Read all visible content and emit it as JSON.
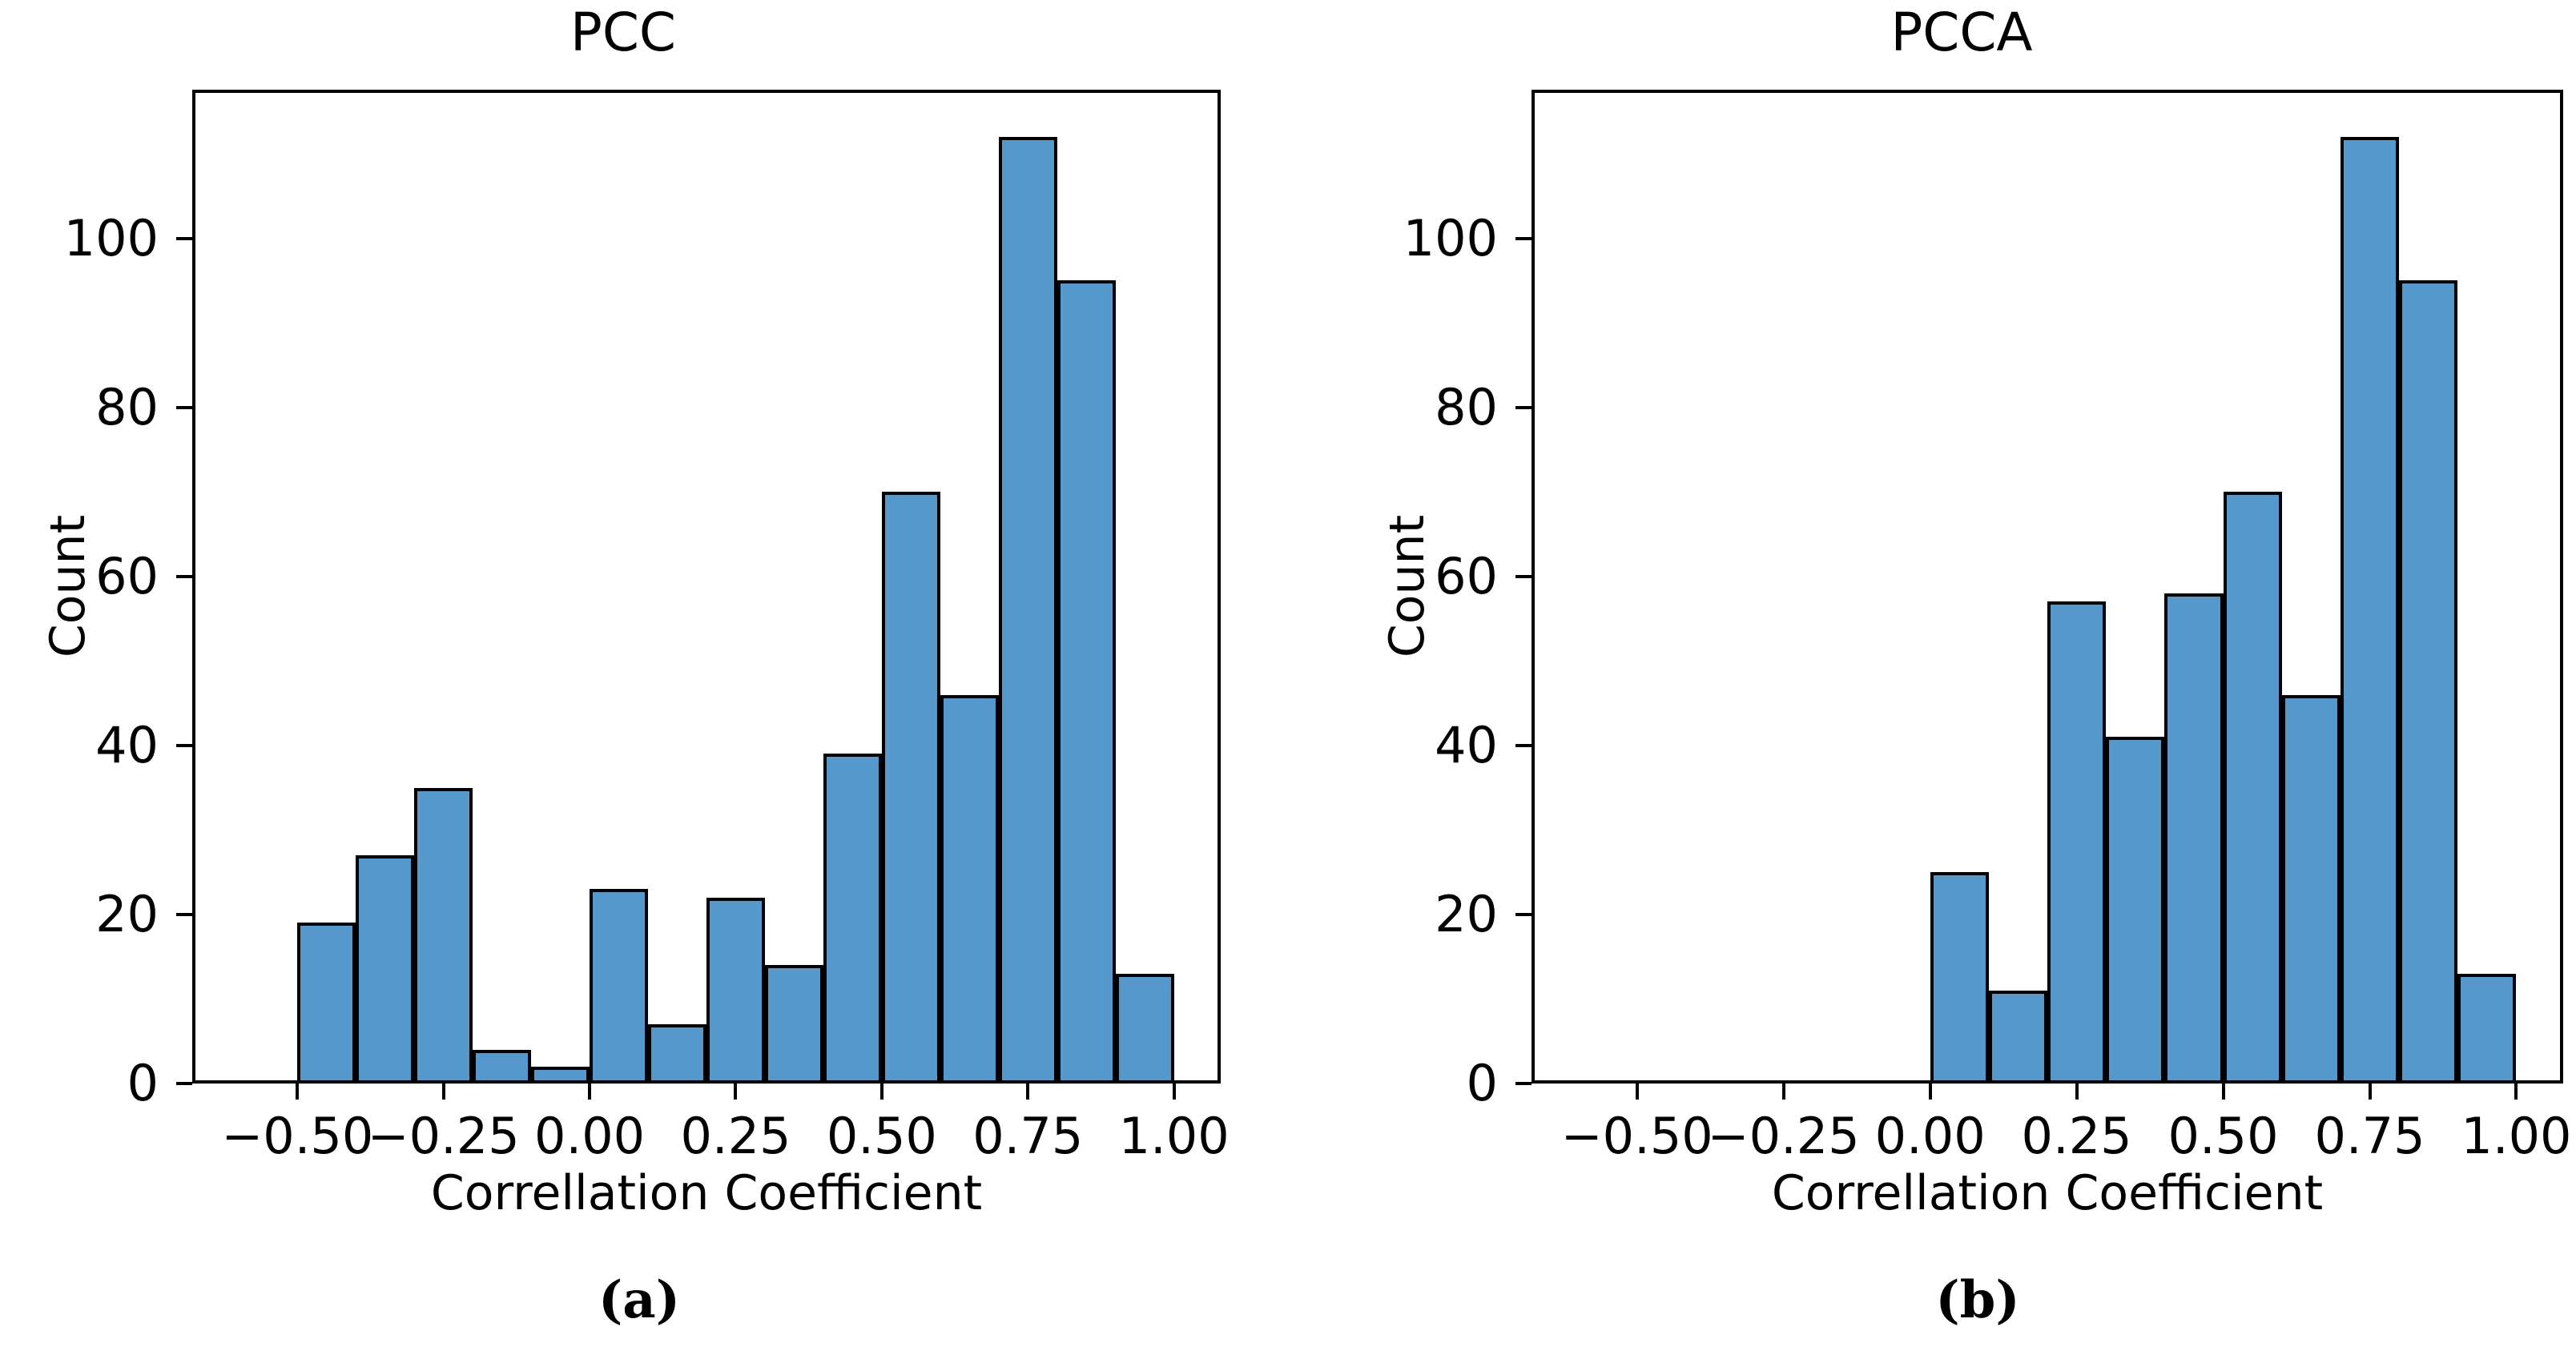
{
  "figure": {
    "background": "#ffffff",
    "bar_fill": "#5598CB",
    "bar_edge": "#000000"
  },
  "chart_data": [
    {
      "type": "bar",
      "title": "PCC",
      "xlabel": "Correllation Coefficient",
      "ylabel": "Count",
      "caption": "(a)",
      "bins": {
        "start": -0.5,
        "width": 0.1
      },
      "counts": [
        19,
        27,
        35,
        4,
        2,
        23,
        7,
        22,
        14,
        39,
        70,
        46,
        112,
        95,
        13
      ],
      "xlim": [
        -0.68,
        1.08
      ],
      "ylim": [
        0,
        117.6
      ],
      "grid": false,
      "legend": null,
      "xticks": {
        "values": [
          -0.5,
          -0.25,
          0.0,
          0.25,
          0.5,
          0.75,
          1.0
        ],
        "labels": [
          "−0.50",
          "−0.25",
          "0.00",
          "0.25",
          "0.50",
          "0.75",
          "1.00"
        ]
      },
      "yticks": {
        "values": [
          0,
          20,
          40,
          60,
          80,
          100
        ],
        "labels": [
          "0",
          "20",
          "40",
          "60",
          "80",
          "100"
        ]
      }
    },
    {
      "type": "bar",
      "title": "PCCA",
      "xlabel": "Correllation Coefficient",
      "ylabel": "Count",
      "caption": "(b)",
      "bins": {
        "start": 0.0,
        "width": 0.1
      },
      "counts": [
        25,
        11,
        57,
        41,
        58,
        70,
        46,
        112,
        95,
        13
      ],
      "xlim": [
        -0.68,
        1.08
      ],
      "ylim": [
        0,
        117.6
      ],
      "grid": false,
      "legend": null,
      "xticks": {
        "values": [
          -0.5,
          -0.25,
          0.0,
          0.25,
          0.5,
          0.75,
          1.0
        ],
        "labels": [
          "−0.50",
          "−0.25",
          "0.00",
          "0.25",
          "0.50",
          "0.75",
          "1.00"
        ]
      },
      "yticks": {
        "values": [
          0,
          20,
          40,
          60,
          80,
          100
        ],
        "labels": [
          "0",
          "20",
          "40",
          "60",
          "80",
          "100"
        ]
      }
    }
  ]
}
